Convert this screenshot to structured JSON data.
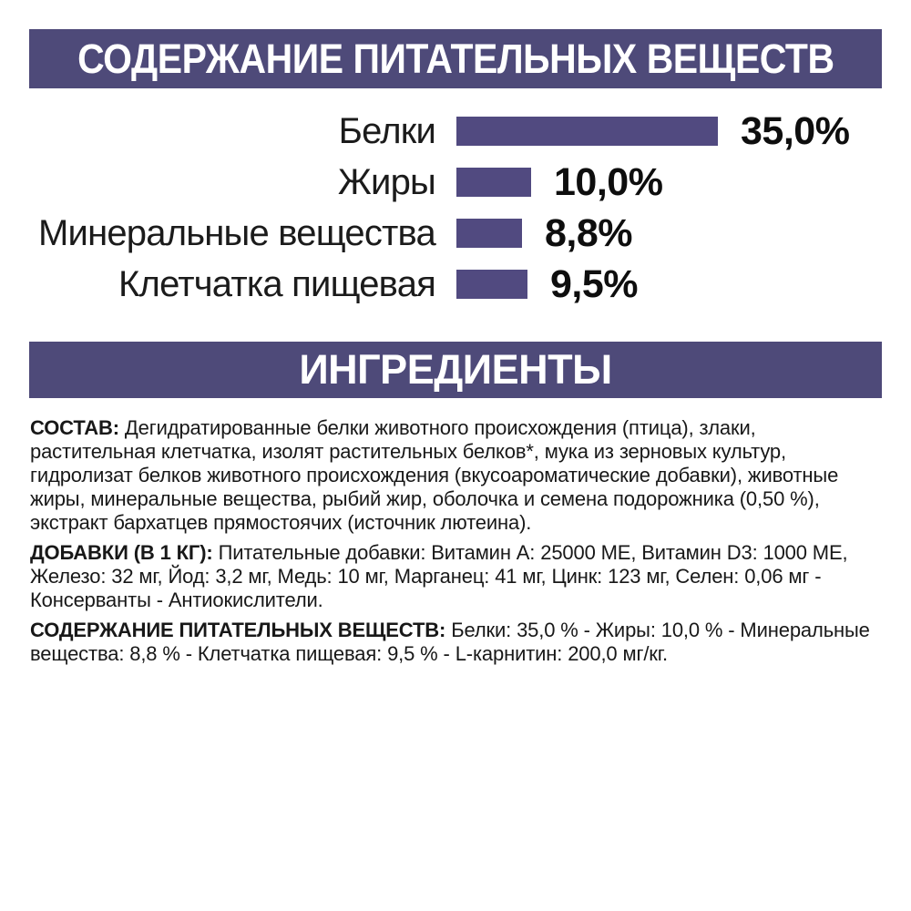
{
  "colors": {
    "banner_bg": "#4e4a79",
    "banner_text": "#ffffff",
    "bar_fill": "#514a80",
    "body_text": "#181818"
  },
  "header": {
    "title": "СОДЕРЖАНИЕ ПИТАТЕЛЬНЫХ ВЕЩЕСТВ"
  },
  "ingredients_header": {
    "title": "ИНГРЕДИЕНТЫ"
  },
  "chart_data": {
    "type": "bar",
    "orientation": "horizontal",
    "categories": [
      "Белки",
      "Жиры",
      "Минеральные вещества",
      "Клетчатка пищевая"
    ],
    "values": [
      35.0,
      10.0,
      8.8,
      9.5
    ],
    "value_labels": [
      "35,0%",
      "10,0%",
      "8,8%",
      "9,5%"
    ],
    "unit": "%",
    "xlim": [
      0,
      40
    ],
    "grid": false,
    "bar_color": "#514a80",
    "value_label_position": "right-of-bar",
    "title": "СОДЕРЖАНИЕ ПИТАТЕЛЬНЫХ ВЕЩЕСТВ"
  },
  "sections": [
    {
      "label": "СОСТАВ:",
      "text": "Дегидратированные белки животного происхождения (птица), злаки, растительная клетчатка, изолят растительных белков*, мука из зерновых культур, гидролизат белков животного происхождения (вкусоароматические добавки), животные жиры, минеральные вещества, рыбий жир, оболочка и семена подорожника (0,50 %), экстракт бархатцев прямостоячих (источник лютеина)."
    },
    {
      "label": "ДОБАВКИ (В 1 КГ):",
      "text": "Питательные добавки: Витамин A: 25000 МЕ, Витамин D3: 1000 МЕ, Железо: 32 мг, Йод: 3,2 мг, Медь: 10 мг, Марганец: 41 мг, Цинк: 123 мг, Селен: 0,06 мг - Консерванты - Антиокислители."
    },
    {
      "label": "СОДЕРЖАНИЕ ПИТАТЕЛЬНЫХ ВЕЩЕСТВ:",
      "text": "Белки: 35,0 % - Жиры: 10,0 % - Минеральные вещества: 8,8 % - Клетчатка пищевая: 9,5 % - L-карнитин: 200,0 мг/кг."
    }
  ]
}
